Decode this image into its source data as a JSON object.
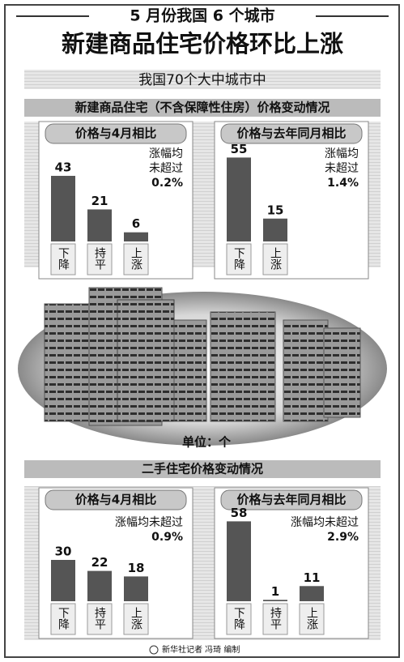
{
  "header": {
    "line1": "5 月份我国 6 个城市",
    "line2": "新建商品住宅价格环比上涨",
    "scope": "我国70个大中城市中"
  },
  "sections": [
    "新建商品住宅（不含保障性住房）价格变动情况",
    "二手住宅价格变动情况"
  ],
  "unit": "单位：个",
  "credit": "新华社记者 冯琦 编制",
  "chart_data": [
    {
      "type": "bar",
      "title": "价格与4月相比",
      "categories": [
        "下降",
        "持平",
        "上涨"
      ],
      "values": [
        43,
        21,
        6
      ],
      "color": "#555555",
      "ylim": [
        0,
        60
      ],
      "annotation": [
        "涨幅均",
        "未超过",
        "0.2%"
      ]
    },
    {
      "type": "bar",
      "title": "价格与去年同月相比",
      "categories": [
        "下降",
        "上涨"
      ],
      "values": [
        55,
        15
      ],
      "color": "#555555",
      "ylim": [
        0,
        60
      ],
      "annotation": [
        "涨幅均",
        "未超过",
        "1.4%"
      ]
    },
    {
      "type": "bar",
      "title": "价格与4月相比",
      "categories": [
        "下降",
        "持平",
        "上涨"
      ],
      "values": [
        30,
        22,
        18
      ],
      "color": "#555555",
      "ylim": [
        0,
        60
      ],
      "annotation": [
        "涨幅均未超过",
        "0.9%"
      ]
    },
    {
      "type": "bar",
      "title": "价格与去年同月相比",
      "categories": [
        "下降",
        "持平",
        "上涨"
      ],
      "values": [
        58,
        1,
        11
      ],
      "color": "#555555",
      "ylim": [
        0,
        60
      ],
      "annotation": [
        "涨幅均未超过",
        "2.9%"
      ]
    }
  ]
}
